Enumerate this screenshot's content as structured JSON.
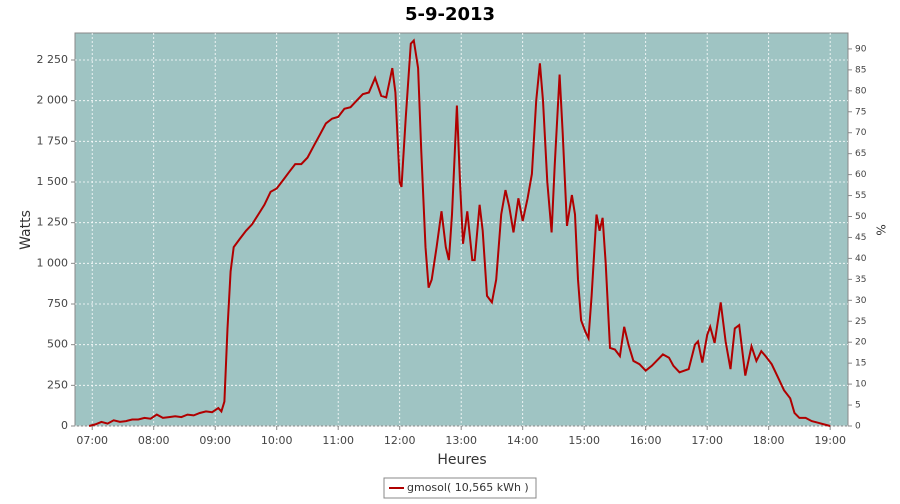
{
  "chart_data": {
    "type": "line",
    "title": "5-9-2013",
    "x_label": "Heures",
    "y_label": "Watts",
    "y2_label": "%",
    "x": [
      6.95,
      7.05,
      7.15,
      7.25,
      7.35,
      7.45,
      7.55,
      7.65,
      7.75,
      7.85,
      7.95,
      8.05,
      8.15,
      8.25,
      8.35,
      8.45,
      8.55,
      8.65,
      8.75,
      8.85,
      8.95,
      9.05,
      9.1,
      9.15,
      9.2,
      9.25,
      9.3,
      9.4,
      9.5,
      9.6,
      9.7,
      9.8,
      9.9,
      10.0,
      10.1,
      10.2,
      10.3,
      10.4,
      10.5,
      10.6,
      10.7,
      10.8,
      10.9,
      11.0,
      11.1,
      11.2,
      11.3,
      11.4,
      11.5,
      11.6,
      11.7,
      11.78,
      11.88,
      11.93,
      12.0,
      12.03,
      12.1,
      12.18,
      12.23,
      12.3,
      12.35,
      12.42,
      12.47,
      12.52,
      12.6,
      12.68,
      12.75,
      12.8,
      12.85,
      12.93,
      12.98,
      13.03,
      13.1,
      13.18,
      13.22,
      13.3,
      13.35,
      13.42,
      13.5,
      13.57,
      13.65,
      13.72,
      13.78,
      13.85,
      13.93,
      14.0,
      14.08,
      14.15,
      14.22,
      14.28,
      14.33,
      14.4,
      14.47,
      14.52,
      14.6,
      14.65,
      14.72,
      14.8,
      14.85,
      14.9,
      14.95,
      15.02,
      15.07,
      15.12,
      15.2,
      15.25,
      15.3,
      15.35,
      15.42,
      15.5,
      15.58,
      15.65,
      15.72,
      15.8,
      15.9,
      16.0,
      16.1,
      16.28,
      16.38,
      16.45,
      16.55,
      16.7,
      16.8,
      16.85,
      16.92,
      17.0,
      17.05,
      17.12,
      17.22,
      17.3,
      17.38,
      17.45,
      17.52,
      17.62,
      17.72,
      17.8,
      17.88,
      17.95,
      18.05,
      18.15,
      18.25,
      18.35,
      18.42,
      18.5,
      18.6,
      18.7,
      18.8,
      18.9,
      19.0
    ],
    "series": [
      {
        "name": "gmosol( 10,565 kWh )",
        "color": "#b00000",
        "values": [
          0,
          10,
          25,
          15,
          35,
          25,
          30,
          40,
          40,
          50,
          45,
          70,
          50,
          55,
          60,
          55,
          70,
          65,
          80,
          90,
          85,
          110,
          90,
          150,
          600,
          950,
          1100,
          1150,
          1200,
          1240,
          1300,
          1360,
          1440,
          1460,
          1510,
          1560,
          1610,
          1610,
          1650,
          1720,
          1790,
          1860,
          1890,
          1900,
          1950,
          1960,
          2000,
          2040,
          2050,
          2140,
          2030,
          2020,
          2200,
          2050,
          1500,
          1470,
          1900,
          2350,
          2370,
          2200,
          1700,
          1100,
          850,
          900,
          1100,
          1320,
          1100,
          1020,
          1300,
          1970,
          1500,
          1120,
          1320,
          1020,
          1020,
          1360,
          1200,
          800,
          760,
          900,
          1300,
          1450,
          1350,
          1190,
          1400,
          1260,
          1400,
          1550,
          2000,
          2230,
          2000,
          1500,
          1190,
          1600,
          2160,
          1800,
          1230,
          1420,
          1300,
          900,
          650,
          580,
          540,
          800,
          1300,
          1200,
          1280,
          1000,
          480,
          470,
          430,
          610,
          500,
          400,
          380,
          340,
          370,
          440,
          420,
          370,
          330,
          350,
          500,
          520,
          390,
          560,
          610,
          510,
          760,
          520,
          350,
          600,
          620,
          310,
          490,
          400,
          460,
          430,
          380,
          300,
          220,
          170,
          80,
          50,
          50,
          30,
          20,
          10,
          0
        ]
      }
    ],
    "xlim": [
      6.72,
      19.29
    ],
    "xticks": [
      {
        "value": 7,
        "label": "07:00"
      },
      {
        "value": 8,
        "label": "08:00"
      },
      {
        "value": 9,
        "label": "09:00"
      },
      {
        "value": 10,
        "label": "10:00"
      },
      {
        "value": 11,
        "label": "11:00"
      },
      {
        "value": 12,
        "label": "12:00"
      },
      {
        "value": 13,
        "label": "13:00"
      },
      {
        "value": 14,
        "label": "14:00"
      },
      {
        "value": 15,
        "label": "15:00"
      },
      {
        "value": 16,
        "label": "16:00"
      },
      {
        "value": 17,
        "label": "17:00"
      },
      {
        "value": 18,
        "label": "18:00"
      },
      {
        "value": 19,
        "label": "19:00"
      }
    ],
    "ylim": [
      0,
      2416
    ],
    "yticks": [
      0,
      250,
      500,
      750,
      {
        "value": 1000,
        "label": "1 000"
      },
      {
        "value": 1250,
        "label": "1 250"
      },
      {
        "value": 1500,
        "label": "1 500"
      },
      {
        "value": 1750,
        "label": "1 750"
      },
      {
        "value": 2000,
        "label": "2 000"
      },
      {
        "value": 2250,
        "label": "2 250"
      }
    ],
    "y2lim": [
      0,
      93.8
    ],
    "y2ticks": [
      0,
      5,
      10,
      15,
      20,
      25,
      30,
      35,
      40,
      45,
      50,
      55,
      60,
      65,
      70,
      75,
      80,
      85,
      90
    ],
    "grid": true,
    "background": "#9fc4c3"
  }
}
